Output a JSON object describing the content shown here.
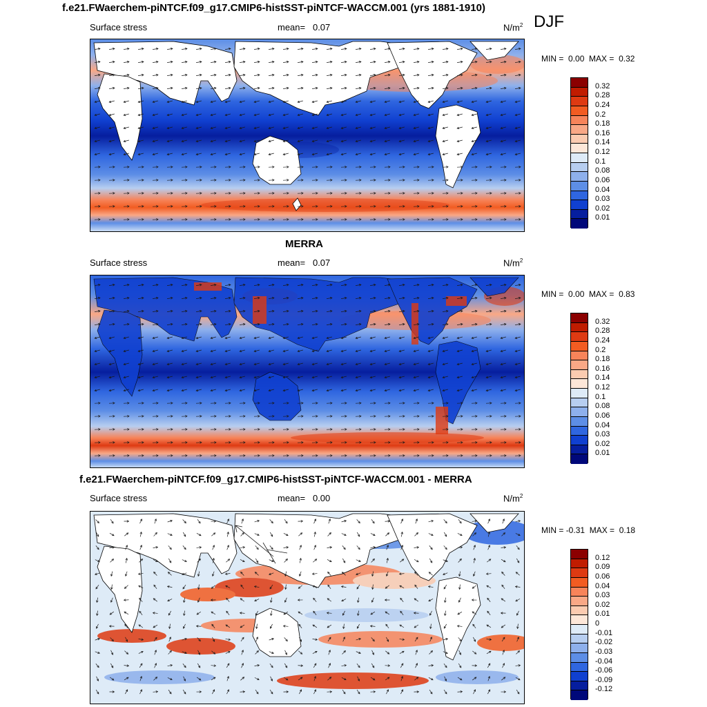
{
  "season": "DJF",
  "colors": {
    "land": "#ffffff",
    "coast": "#000000",
    "arrow": "#1a1a1a"
  },
  "panels": [
    {
      "title": "f.e21.FWaerchem-piNTCF.f09_g17.CMIP6-histSST-piNTCF-WACCM.001 (yrs 1881-1910)",
      "variable": "Surface stress",
      "mean_label": "mean=",
      "mean_value": "0.07",
      "units": "N/m",
      "units_exp": "2",
      "min_label": "MIN =",
      "min_value": "0.00",
      "max_label": "MAX =",
      "max_value": "0.32",
      "colorbar": {
        "labels": [
          "0.32",
          "0.28",
          "0.24",
          "0.2",
          "0.18",
          "0.16",
          "0.14",
          "0.12",
          "0.1",
          "0.08",
          "0.06",
          "0.04",
          "0.03",
          "0.02",
          "0.01"
        ],
        "colors": [
          "#8b0000",
          "#c01c00",
          "#de3a12",
          "#f25c22",
          "#f7845a",
          "#f9a886",
          "#fbcbb0",
          "#fde7d8",
          "#deebf7",
          "#b7cef0",
          "#8eb0ec",
          "#5d8ee6",
          "#2f66e0",
          "#1040d0",
          "#061e9e",
          "#00087a"
        ]
      }
    },
    {
      "title": "MERRA",
      "variable": "Surface stress",
      "mean_label": "mean=",
      "mean_value": "0.07",
      "units": "N/m",
      "units_exp": "2",
      "min_label": "MIN =",
      "min_value": "0.00",
      "max_label": "MAX =",
      "max_value": "0.83",
      "colorbar": {
        "labels": [
          "0.32",
          "0.28",
          "0.24",
          "0.2",
          "0.18",
          "0.16",
          "0.14",
          "0.12",
          "0.1",
          "0.08",
          "0.06",
          "0.04",
          "0.03",
          "0.02",
          "0.01"
        ],
        "colors": [
          "#8b0000",
          "#c01c00",
          "#de3a12",
          "#f25c22",
          "#f7845a",
          "#f9a886",
          "#fbcbb0",
          "#fde7d8",
          "#deebf7",
          "#b7cef0",
          "#8eb0ec",
          "#5d8ee6",
          "#2f66e0",
          "#1040d0",
          "#061e9e",
          "#00087a"
        ]
      }
    },
    {
      "title": "f.e21.FWaerchem-piNTCF.f09_g17.CMIP6-histSST-piNTCF-WACCM.001 - MERRA",
      "variable": "Surface stress",
      "mean_label": "mean=",
      "mean_value": "0.00",
      "units": "N/m",
      "units_exp": "2",
      "min_label": "MIN =",
      "min_value": "-0.31",
      "max_label": "MAX =",
      "max_value": "0.18",
      "colorbar": {
        "labels": [
          "0.12",
          "0.09",
          "0.06",
          "0.04",
          "0.03",
          "0.02",
          "0.01",
          "0",
          "-0.01",
          "-0.02",
          "-0.03",
          "-0.04",
          "-0.06",
          "-0.09",
          "-0.12"
        ],
        "colors": [
          "#8b0000",
          "#c01c00",
          "#de3a12",
          "#f25c22",
          "#f7845a",
          "#f9a886",
          "#fbcbb0",
          "#fde7d8",
          "#deebf7",
          "#b7cef0",
          "#8eb0ec",
          "#5d8ee6",
          "#2f66e0",
          "#1040d0",
          "#061e9e",
          "#00087a"
        ]
      }
    }
  ]
}
